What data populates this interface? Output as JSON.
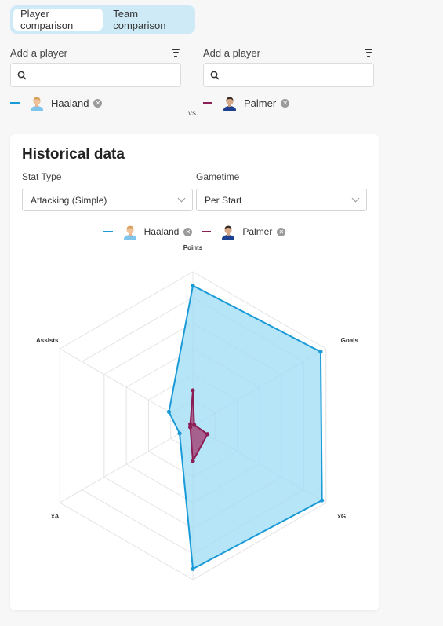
{
  "tabs": [
    {
      "label": "Player comparison",
      "active": true
    },
    {
      "label": "Team comparison",
      "active": false
    }
  ],
  "left": {
    "add_label": "Add a player",
    "search_placeholder": "",
    "player": "Haaland",
    "color": "#1a9ad6"
  },
  "right": {
    "add_label": "Add a player",
    "search_placeholder": "",
    "player": "Palmer",
    "color": "#8b1f55"
  },
  "vs_label": "vs.",
  "card": {
    "title": "Historical data",
    "stat_type_label": "Stat Type",
    "stat_type_value": "Attacking (Simple)",
    "gametime_label": "Gametime",
    "gametime_value": "Per Start"
  },
  "legend": [
    {
      "name": "Haaland",
      "color": "#1a9ad6"
    },
    {
      "name": "Palmer",
      "color": "#8b1f55"
    }
  ],
  "icons": {
    "search": "search-icon",
    "filter": "filter-icon",
    "remove": "remove-icon",
    "dropdown": "chevron-down-icon",
    "avatar": "player-avatar-icon"
  },
  "chart_data": {
    "type": "radar",
    "axes": [
      "Points",
      "Goals",
      "xG",
      "xPoints",
      "xA",
      "Assists"
    ],
    "max": 1,
    "rings": 6,
    "series": [
      {
        "name": "Haaland",
        "color": "#1a9ad6",
        "fill": "#9fdcf6",
        "values": [
          0.91,
          0.96,
          0.97,
          0.93,
          0.1,
          0.18
        ]
      },
      {
        "name": "Palmer",
        "color": "#8b1f55",
        "fill": "#a44a7c",
        "values": [
          0.23,
          0.01,
          0.11,
          0.23,
          0.02,
          0.02
        ]
      }
    ]
  }
}
